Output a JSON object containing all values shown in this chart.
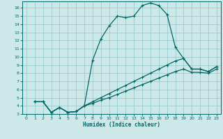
{
  "xlabel": "Humidex (Indice chaleur)",
  "bg_color": "#cce8e8",
  "grid_color": "#99cccc",
  "line_color": "#006666",
  "xlim": [
    -0.5,
    23.5
  ],
  "ylim": [
    3,
    16.8
  ],
  "xticks": [
    0,
    1,
    2,
    3,
    4,
    5,
    6,
    7,
    8,
    9,
    10,
    11,
    12,
    13,
    14,
    15,
    16,
    17,
    18,
    19,
    20,
    21,
    22,
    23
  ],
  "yticks": [
    3,
    4,
    5,
    6,
    7,
    8,
    9,
    10,
    11,
    12,
    13,
    14,
    15,
    16
  ],
  "line1_x": [
    1,
    2,
    3,
    4,
    5,
    6,
    7,
    8,
    9,
    10,
    11,
    12,
    13,
    14,
    15,
    16,
    17,
    18,
    19,
    20,
    21,
    22,
    23
  ],
  "line1_y": [
    4.5,
    4.5,
    3.2,
    3.8,
    3.2,
    3.3,
    4.0,
    9.6,
    12.2,
    13.8,
    15.0,
    14.8,
    15.0,
    16.3,
    16.6,
    16.3,
    15.2,
    11.2,
    9.8,
    8.5,
    8.5,
    8.2,
    8.8
  ],
  "line2_x": [
    1,
    2,
    3,
    4,
    5,
    6,
    7,
    8,
    9,
    10,
    11,
    12,
    13,
    14,
    15,
    16,
    17,
    18,
    19,
    20,
    21,
    22,
    23
  ],
  "line2_y": [
    4.5,
    4.5,
    3.2,
    3.8,
    3.2,
    3.3,
    4.0,
    4.5,
    5.0,
    5.5,
    6.0,
    6.5,
    7.0,
    7.5,
    8.0,
    8.5,
    9.0,
    9.5,
    9.8,
    8.5,
    8.5,
    8.2,
    8.8
  ],
  "line3_x": [
    1,
    2,
    3,
    4,
    5,
    6,
    7,
    8,
    9,
    10,
    11,
    12,
    13,
    14,
    15,
    16,
    17,
    18,
    19,
    20,
    21,
    22,
    23
  ],
  "line3_y": [
    4.5,
    4.5,
    3.2,
    3.8,
    3.2,
    3.3,
    4.0,
    4.3,
    4.7,
    5.0,
    5.4,
    5.8,
    6.2,
    6.6,
    7.0,
    7.4,
    7.8,
    8.2,
    8.5,
    8.1,
    8.1,
    8.0,
    8.5
  ]
}
